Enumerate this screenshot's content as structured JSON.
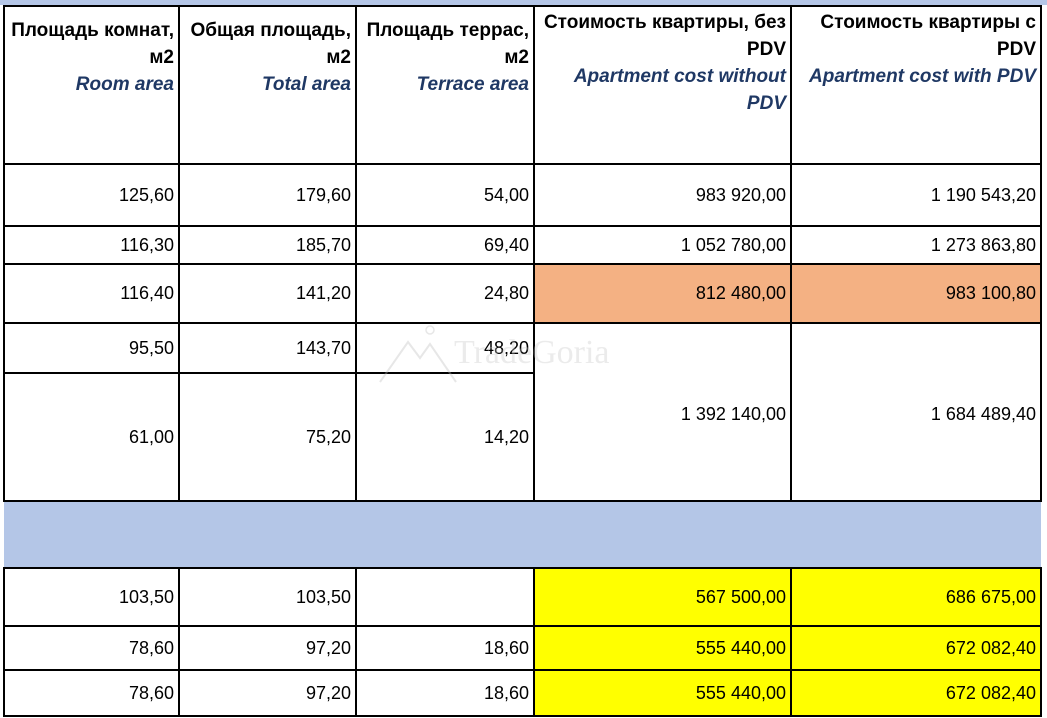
{
  "headers": [
    {
      "ru": "Площадь комнат, м2",
      "en": "Room area"
    },
    {
      "ru": "Общая площадь, м2",
      "en": "Total area"
    },
    {
      "ru": "Площадь террас, м2",
      "en": "Terrace area"
    },
    {
      "ru": "Стоимость квартиры, без PDV",
      "en": "Apartment cost without PDV"
    },
    {
      "ru": "Стоимость квартиры с PDV",
      "en": "Apartment cost with PDV"
    }
  ],
  "rows": [
    {
      "room": "125,60",
      "total": "179,60",
      "terrace": "54,00",
      "cost": "983 920,00",
      "cost_pdv": "1 190 543,20"
    },
    {
      "room": "116,30",
      "total": "185,70",
      "terrace": "69,40",
      "cost": "1 052 780,00",
      "cost_pdv": "1 273 863,80"
    },
    {
      "room": "116,40",
      "total": "141,20",
      "terrace": "24,80",
      "cost": "812 480,00",
      "cost_pdv": "983 100,80"
    },
    {
      "room": "95,50",
      "total": "143,70",
      "terrace": "48,20"
    },
    {
      "room": "61,00",
      "total": "75,20",
      "terrace": "14,20"
    }
  ],
  "merged_cost": "1 392 140,00",
  "merged_cost_pdv": "1 684 489,40",
  "rows2": [
    {
      "room": "103,50",
      "total": "103,50",
      "terrace": "",
      "cost": "567 500,00",
      "cost_pdv": "686 675,00"
    },
    {
      "room": "78,60",
      "total": "97,20",
      "terrace": "18,60",
      "cost": "555 440,00",
      "cost_pdv": "672 082,40"
    },
    {
      "room": "78,60",
      "total": "97,20",
      "terrace": "18,60",
      "cost": "555 440,00",
      "cost_pdv": "672 082,40"
    }
  ],
  "watermark": "TradeGoria",
  "colors": {
    "header_en": "#1f3864",
    "band": "#b4c6e7",
    "highlight_peach": "#f4b183",
    "highlight_yellow": "#ffff00"
  }
}
